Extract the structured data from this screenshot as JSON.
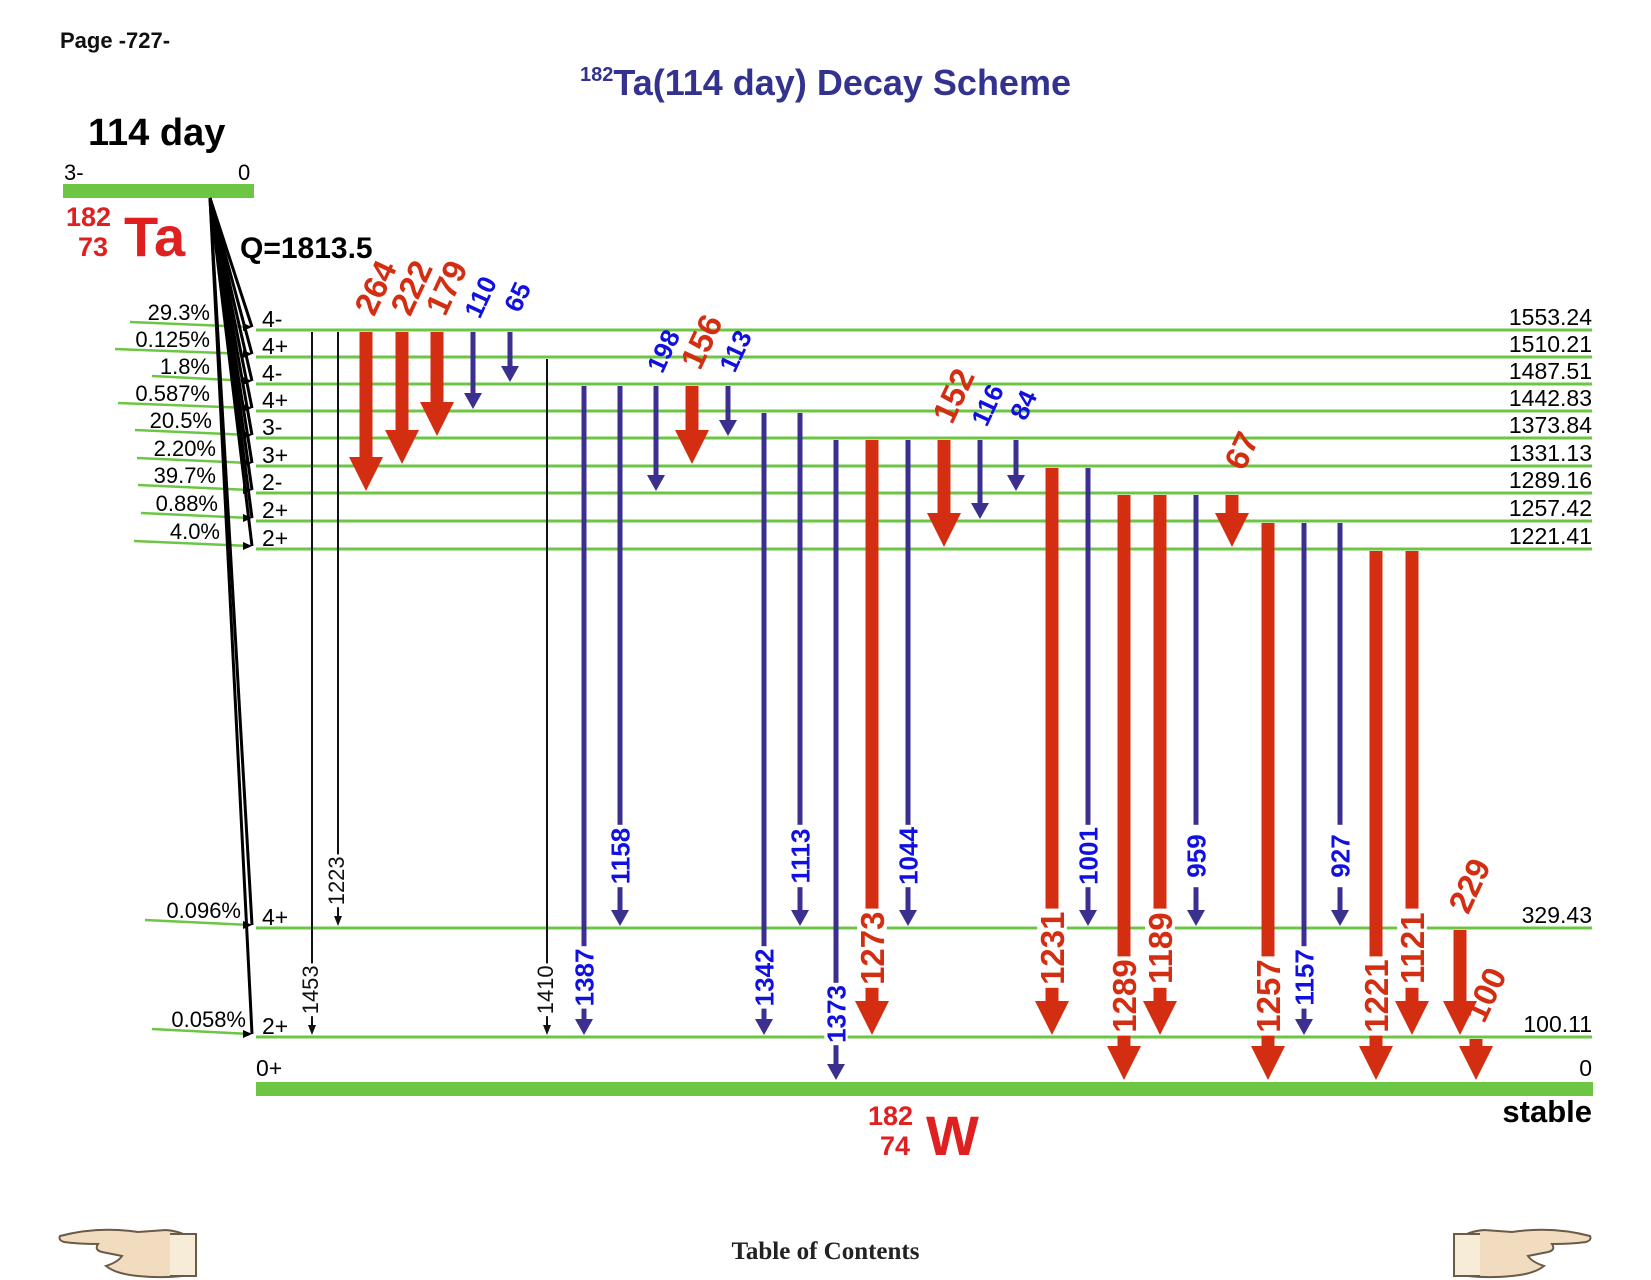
{
  "header": {
    "page_label": "Page -727-"
  },
  "title": {
    "mass": "182",
    "text": "Ta(114 day) Decay Scheme"
  },
  "parent": {
    "half_life": "114 day",
    "spin": "3-",
    "energy": "0",
    "mass": "182",
    "z": "73",
    "symbol": "Ta",
    "q_value": "Q=1813.5"
  },
  "daughter": {
    "mass": "182",
    "z": "74",
    "symbol": "W",
    "spin": "0+",
    "energy": "0",
    "stability": "stable"
  },
  "levels": [
    {
      "energy": "1553.24",
      "spin": "4-",
      "branch": "29.3%"
    },
    {
      "energy": "1510.21",
      "spin": "4+",
      "branch": "0.125%"
    },
    {
      "energy": "1487.51",
      "spin": "4-",
      "branch": "1.8%"
    },
    {
      "energy": "1442.83",
      "spin": "4+",
      "branch": "0.587%"
    },
    {
      "energy": "1373.84",
      "spin": "3-",
      "branch": "20.5%"
    },
    {
      "energy": "1331.13",
      "spin": "3+",
      "branch": "2.20%"
    },
    {
      "energy": "1289.16",
      "spin": "2-",
      "branch": "39.7%"
    },
    {
      "energy": "1257.42",
      "spin": "2+",
      "branch": "0.88%"
    },
    {
      "energy": "1221.41",
      "spin": "2+",
      "branch": "4.0%"
    },
    {
      "energy": "329.43",
      "spin": "4+",
      "branch": "0.096%"
    },
    {
      "energy": "100.11",
      "spin": "2+",
      "branch": "0.058%"
    }
  ],
  "transitions": [
    {
      "label": "1453",
      "from": "1553.24",
      "to": "100.11",
      "style": "thin"
    },
    {
      "label": "1223",
      "from": "1553.24",
      "to": "329.43",
      "style": "thin"
    },
    {
      "label": "264",
      "from": "1553.24",
      "to": "1289.16",
      "style": "strong"
    },
    {
      "label": "222",
      "from": "1553.24",
      "to": "1331.13",
      "style": "strong"
    },
    {
      "label": "179",
      "from": "1553.24",
      "to": "1373.84",
      "style": "strong"
    },
    {
      "label": "110",
      "from": "1553.24",
      "to": "1442.83",
      "style": "medium"
    },
    {
      "label": "65",
      "from": "1553.24",
      "to": "1487.51",
      "style": "medium"
    },
    {
      "label": "1410",
      "from": "1510.21",
      "to": "100.11",
      "style": "thin"
    },
    {
      "label": "1387",
      "from": "1487.51",
      "to": "100.11",
      "style": "medium"
    },
    {
      "label": "1158",
      "from": "1487.51",
      "to": "329.43",
      "style": "medium"
    },
    {
      "label": "198",
      "from": "1487.51",
      "to": "1289.16",
      "style": "medium"
    },
    {
      "label": "156",
      "from": "1487.51",
      "to": "1331.13",
      "style": "strong"
    },
    {
      "label": "113",
      "from": "1487.51",
      "to": "1373.84",
      "style": "medium"
    },
    {
      "label": "1342",
      "from": "1442.83",
      "to": "100.11",
      "style": "medium"
    },
    {
      "label": "1113",
      "from": "1442.83",
      "to": "329.43",
      "style": "medium"
    },
    {
      "label": "1373",
      "from": "1373.84",
      "to": "0",
      "style": "medium"
    },
    {
      "label": "1273",
      "from": "1373.84",
      "to": "100.11",
      "style": "strong"
    },
    {
      "label": "1044",
      "from": "1373.84",
      "to": "329.43",
      "style": "medium"
    },
    {
      "label": "152",
      "from": "1373.84",
      "to": "1221.41",
      "style": "strong"
    },
    {
      "label": "116",
      "from": "1373.84",
      "to": "1257.42",
      "style": "medium"
    },
    {
      "label": "84",
      "from": "1373.84",
      "to": "1289.16",
      "style": "medium"
    },
    {
      "label": "1231",
      "from": "1331.13",
      "to": "100.11",
      "style": "strong"
    },
    {
      "label": "1001",
      "from": "1331.13",
      "to": "329.43",
      "style": "medium"
    },
    {
      "label": "1289",
      "from": "1289.16",
      "to": "0",
      "style": "strong"
    },
    {
      "label": "1189",
      "from": "1289.16",
      "to": "100.11",
      "style": "strong"
    },
    {
      "label": "959",
      "from": "1289.16",
      "to": "329.43",
      "style": "medium"
    },
    {
      "label": "67",
      "from": "1289.16",
      "to": "1221.41",
      "style": "strong"
    },
    {
      "label": "1257",
      "from": "1257.42",
      "to": "0",
      "style": "strong"
    },
    {
      "label": "1157",
      "from": "1257.42",
      "to": "100.11",
      "style": "medium"
    },
    {
      "label": "927",
      "from": "1257.42",
      "to": "329.43",
      "style": "medium"
    },
    {
      "label": "1221",
      "from": "1221.41",
      "to": "0",
      "style": "strong"
    },
    {
      "label": "1121",
      "from": "1221.41",
      "to": "100.11",
      "style": "strong"
    },
    {
      "label": "229",
      "from": "329.43",
      "to": "100.11",
      "style": "strong"
    },
    {
      "label": "100",
      "from": "100.11",
      "to": "0",
      "style": "strong"
    }
  ],
  "colors": {
    "level_line": "#6cc644",
    "ground_bar": "#6cc644",
    "strong": "#d42e12",
    "medium": "#3b2f8f",
    "medium_label": "#1010e0",
    "thin": "#111111",
    "title": "#33338f",
    "nucleus": "#e02020"
  },
  "footer": {
    "toc_label": "Table of Contents",
    "prev_icon": "hand-pointing-left-icon",
    "next_icon": "hand-pointing-right-icon"
  }
}
